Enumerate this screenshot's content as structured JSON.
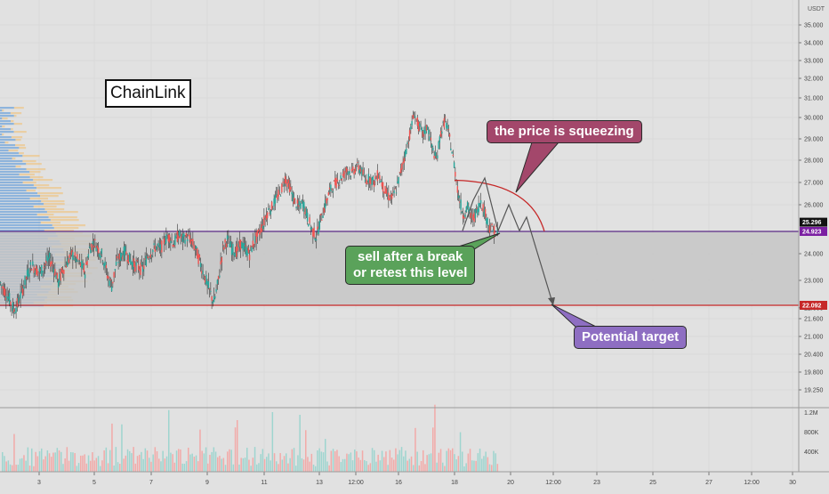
{
  "chart_data": {
    "type": "candlestick",
    "title": "ChainLink",
    "symbol": "ChainLink",
    "currency_label": "USDT",
    "price_axis_ticks": [
      "35.000",
      "34.000",
      "33.000",
      "32.000",
      "31.000",
      "30.000",
      "29.000",
      "28.000",
      "27.000",
      "26.000",
      "24.000",
      "23.000",
      "22.000",
      "21.600",
      "21.000",
      "20.400",
      "19.800",
      "19.250"
    ],
    "price_axis_range": [
      18.9,
      35.7
    ],
    "price_badges": [
      {
        "value": "25.296",
        "color": "#111111"
      },
      {
        "value": "24.923",
        "color": "#7b1fa2"
      },
      {
        "value": "22.092",
        "color": "#c62828"
      }
    ],
    "volume_axis_ticks": [
      "1.2M",
      "800K",
      "400K"
    ],
    "x_axis_labels": [
      "3",
      "5",
      "7",
      "9",
      "11",
      "13",
      "12:00",
      "16",
      "18",
      "20",
      "12:00",
      "23",
      "25",
      "27",
      "12:00",
      "30"
    ],
    "zones": {
      "resistance_top": 24.923,
      "support_bottom": 22.092,
      "zone_fill": "#c6c6c6"
    },
    "price_path_points": [
      [
        0,
        22.9
      ],
      [
        5,
        22.6
      ],
      [
        10,
        22.3
      ],
      [
        15,
        21.9
      ],
      [
        20,
        22.2
      ],
      [
        25,
        22.7
      ],
      [
        30,
        23.2
      ],
      [
        35,
        23.6
      ],
      [
        40,
        23.4
      ],
      [
        45,
        23.3
      ],
      [
        50,
        23.6
      ],
      [
        55,
        23.8
      ],
      [
        60,
        23.5
      ],
      [
        65,
        22.9
      ],
      [
        70,
        23.4
      ],
      [
        75,
        23.7
      ],
      [
        80,
        24.0
      ],
      [
        85,
        23.8
      ],
      [
        90,
        23.6
      ],
      [
        95,
        23.3
      ],
      [
        100,
        24.2
      ],
      [
        105,
        24.5
      ],
      [
        110,
        24.2
      ],
      [
        115,
        23.9
      ],
      [
        120,
        23.2
      ],
      [
        125,
        22.8
      ],
      [
        130,
        23.6
      ],
      [
        135,
        23.9
      ],
      [
        140,
        24.1
      ],
      [
        145,
        23.8
      ],
      [
        150,
        23.6
      ],
      [
        155,
        23.5
      ],
      [
        160,
        23.4
      ],
      [
        165,
        23.9
      ],
      [
        170,
        24.1
      ],
      [
        175,
        24.3
      ],
      [
        180,
        24.2
      ],
      [
        185,
        24.6
      ],
      [
        190,
        24.7
      ],
      [
        195,
        24.4
      ],
      [
        200,
        24.8
      ],
      [
        205,
        24.6
      ],
      [
        210,
        24.7
      ],
      [
        215,
        24.5
      ],
      [
        220,
        24.1
      ],
      [
        225,
        23.6
      ],
      [
        230,
        23.1
      ],
      [
        235,
        22.6
      ],
      [
        240,
        22.2
      ],
      [
        245,
        23.0
      ],
      [
        250,
        24.2
      ],
      [
        255,
        24.6
      ],
      [
        260,
        24.2
      ],
      [
        265,
        24.1
      ],
      [
        270,
        24.4
      ],
      [
        275,
        24.2
      ],
      [
        280,
        24.0
      ],
      [
        285,
        24.5
      ],
      [
        290,
        24.8
      ],
      [
        295,
        25.2
      ],
      [
        300,
        25.7
      ],
      [
        305,
        25.9
      ],
      [
        310,
        26.3
      ],
      [
        315,
        26.6
      ],
      [
        320,
        27.2
      ],
      [
        325,
        26.8
      ],
      [
        330,
        26.2
      ],
      [
        335,
        25.9
      ],
      [
        340,
        26.1
      ],
      [
        345,
        25.5
      ],
      [
        350,
        25.0
      ],
      [
        355,
        24.7
      ],
      [
        360,
        25.4
      ],
      [
        365,
        26.0
      ],
      [
        370,
        26.6
      ],
      [
        375,
        26.9
      ],
      [
        380,
        27.1
      ],
      [
        385,
        27.3
      ],
      [
        390,
        27.6
      ],
      [
        395,
        27.4
      ],
      [
        400,
        27.7
      ],
      [
        405,
        27.6
      ],
      [
        410,
        27.1
      ],
      [
        415,
        27.2
      ],
      [
        420,
        27.0
      ],
      [
        425,
        27.4
      ],
      [
        430,
        26.8
      ],
      [
        435,
        26.4
      ],
      [
        440,
        26.3
      ],
      [
        445,
        26.7
      ],
      [
        450,
        27.5
      ],
      [
        455,
        28.3
      ],
      [
        460,
        29.2
      ],
      [
        465,
        30.2
      ],
      [
        470,
        29.6
      ],
      [
        475,
        29.2
      ],
      [
        480,
        29.6
      ],
      [
        485,
        28.6
      ],
      [
        490,
        28.0
      ],
      [
        495,
        29.3
      ],
      [
        500,
        29.9
      ],
      [
        505,
        29.0
      ],
      [
        510,
        27.8
      ],
      [
        515,
        26.4
      ],
      [
        520,
        25.6
      ],
      [
        525,
        25.9
      ],
      [
        530,
        25.4
      ],
      [
        535,
        25.7
      ],
      [
        540,
        26.2
      ],
      [
        545,
        25.6
      ],
      [
        550,
        25.1
      ],
      [
        555,
        24.9
      ],
      [
        560,
        25.1
      ]
    ],
    "projection_points": [
      [
        520,
        24.95
      ],
      [
        532,
        26.2
      ],
      [
        545,
        27.2
      ],
      [
        560,
        24.95
      ],
      [
        572,
        26.0
      ],
      [
        584,
        24.95
      ],
      [
        592,
        25.5
      ],
      [
        622,
        22.092
      ]
    ],
    "annotations": [
      {
        "text": "the price is squeezing",
        "color": "#a3476b"
      },
      {
        "text_lines": [
          "sell after a break",
          "or retest this level"
        ],
        "color": "#5aa25a"
      },
      {
        "text": "Potential target",
        "color": "#8e6ec2"
      }
    ]
  }
}
